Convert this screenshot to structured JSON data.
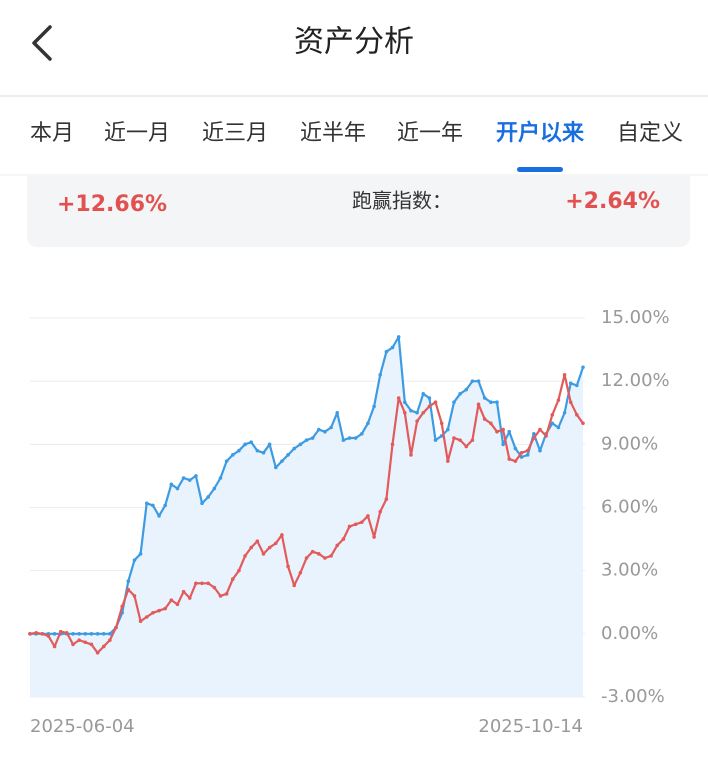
{
  "header": {
    "title": "资产分析"
  },
  "tabs": {
    "items": [
      "本月",
      "近一月",
      "近三月",
      "近半年",
      "近一年",
      "开户以来",
      "自定义"
    ],
    "active": 5
  },
  "summary": {
    "return": "+12.66%",
    "beat_label": "跑赢指数：",
    "beat_value": "+2.64%"
  },
  "chart_data": {
    "type": "line",
    "categories": [
      "2025-06-04",
      null,
      null,
      null,
      null,
      null,
      null,
      null,
      null,
      null,
      null,
      null,
      null,
      null,
      null,
      null,
      null,
      null,
      null,
      null,
      null,
      null,
      null,
      null,
      null,
      null,
      null,
      null,
      null,
      null,
      null,
      null,
      null,
      null,
      null,
      null,
      null,
      null,
      null,
      null,
      null,
      null,
      null,
      null,
      null,
      null,
      null,
      null,
      null,
      null,
      null,
      null,
      null,
      null,
      null,
      null,
      null,
      null,
      null,
      null,
      null,
      null,
      null,
      null,
      null,
      null,
      null,
      null,
      null,
      null,
      null,
      null,
      null,
      null,
      null,
      null,
      null,
      null,
      null,
      null,
      null,
      null,
      null,
      null,
      null,
      null,
      null,
      null,
      null,
      null,
      "2025-10-14"
    ],
    "series": [
      {
        "color": "#3d9be3",
        "fill": "#e9f3fd",
        "values": [
          0,
          0,
          0,
          0,
          0,
          0,
          0,
          0,
          0,
          0,
          0,
          0,
          0,
          0,
          0.3,
          1,
          2.5,
          3.5,
          3.8,
          6.2,
          6.1,
          5.6,
          6.1,
          7.1,
          6.9,
          7.4,
          7.3,
          7.5,
          6.2,
          6.5,
          6.9,
          7.4,
          8.2,
          8.5,
          8.7,
          9.0,
          9.1,
          8.7,
          8.6,
          9.0,
          7.9,
          8.2,
          8.5,
          8.8,
          9.0,
          9.2,
          9.3,
          9.7,
          9.6,
          9.8,
          10.5,
          9.2,
          9.3,
          9.3,
          9.5,
          10.0,
          10.8,
          12.3,
          13.4,
          13.6,
          14.1,
          11.0,
          10.6,
          10.5,
          11.4,
          11.2,
          9.2,
          9.4,
          9.7,
          11.0,
          11.4,
          11.6,
          12.0,
          12.0,
          11.2,
          11.0,
          11.0,
          9.0,
          9.6,
          8.8,
          8.4,
          8.5,
          9.5,
          8.7,
          9.5,
          10.0,
          9.8,
          10.5,
          11.9,
          11.8,
          12.66
        ]
      },
      {
        "color": "#e25b5b",
        "values": [
          0,
          0.05,
          0,
          -0.1,
          -0.6,
          0.1,
          0.05,
          -0.5,
          -0.3,
          -0.4,
          -0.5,
          -0.9,
          -0.6,
          -0.3,
          0.3,
          1.3,
          2.1,
          1.8,
          0.6,
          0.8,
          1.0,
          1.1,
          1.2,
          1.6,
          1.4,
          2.0,
          1.7,
          2.4,
          2.4,
          2.4,
          2.2,
          1.8,
          1.9,
          2.6,
          3.0,
          3.7,
          4.1,
          4.4,
          3.8,
          4.1,
          4.3,
          4.7,
          3.2,
          2.3,
          2.9,
          3.6,
          3.9,
          3.8,
          3.6,
          3.7,
          4.2,
          4.5,
          5.1,
          5.2,
          5.3,
          5.6,
          4.6,
          5.8,
          6.4,
          9.0,
          11.2,
          10.5,
          8.5,
          10.1,
          10.5,
          10.8,
          11.0,
          10.0,
          8.2,
          9.3,
          9.2,
          8.9,
          9.2,
          10.9,
          10.2,
          10.0,
          9.6,
          9.7,
          8.3,
          8.2,
          8.6,
          8.7,
          9.3,
          9.7,
          9.4,
          10.4,
          11.1,
          12.3,
          11.0,
          10.4,
          10.0
        ]
      }
    ],
    "ylim": [
      -3,
      15
    ],
    "yticks": [
      {
        "value": -3,
        "label": "-3.00%"
      },
      {
        "value": 0,
        "label": "0.00%"
      },
      {
        "value": 3,
        "label": "3.00%"
      },
      {
        "value": 6,
        "label": "6.00%"
      },
      {
        "value": 9,
        "label": "9.00%"
      },
      {
        "value": 12,
        "label": "12.00%"
      },
      {
        "value": 15,
        "label": "15.00%"
      }
    ],
    "grid": true
  }
}
